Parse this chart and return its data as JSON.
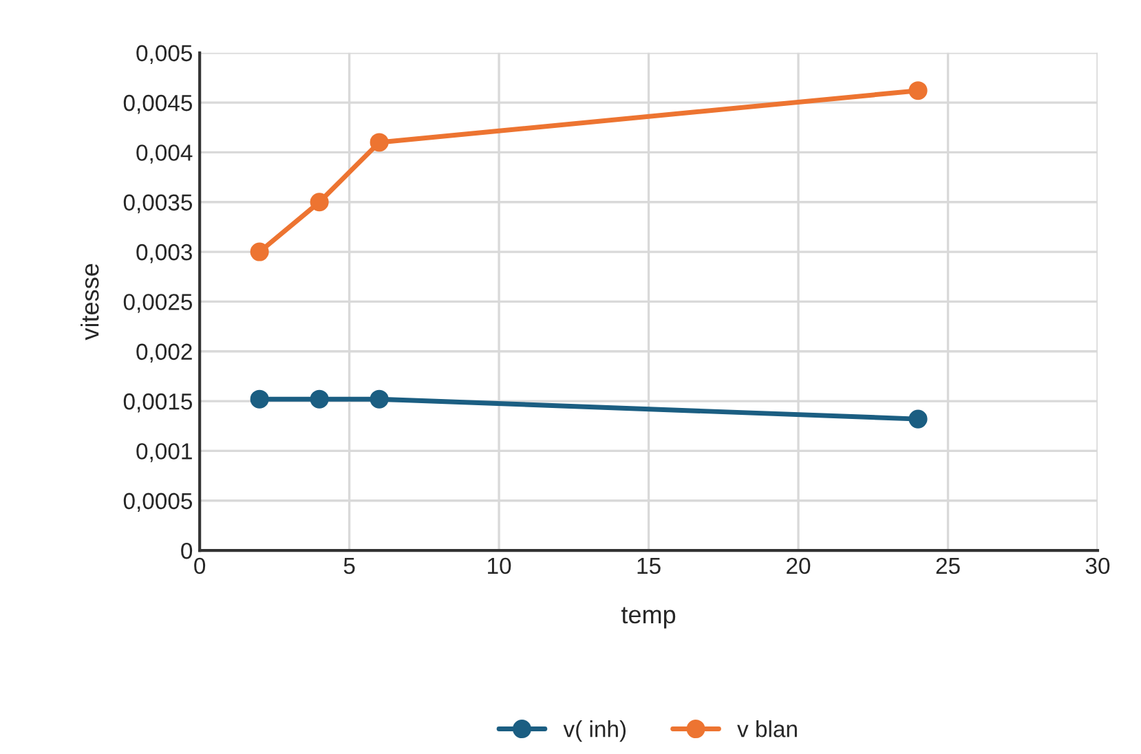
{
  "chart_data": {
    "type": "line",
    "xlabel": "temp",
    "ylabel": "vitesse",
    "x": [
      2,
      4,
      6,
      24
    ],
    "series": [
      {
        "name": "v( inh)",
        "color": "#1b5e82",
        "values": [
          0.00152,
          0.00152,
          0.00152,
          0.00132
        ]
      },
      {
        "name": "v blan",
        "color": "#ed7431",
        "values": [
          0.003,
          0.0035,
          0.0041,
          0.00462
        ]
      }
    ],
    "xlim": [
      0,
      30
    ],
    "xticks": [
      0,
      5,
      10,
      15,
      20,
      25,
      30
    ],
    "ylim": [
      0,
      0.005
    ],
    "yticks": [
      {
        "value": 0,
        "label": "0"
      },
      {
        "value": 0.0005,
        "label": "0,0005"
      },
      {
        "value": 0.001,
        "label": "0,001"
      },
      {
        "value": 0.0015,
        "label": "0,0015"
      },
      {
        "value": 0.002,
        "label": "0,002"
      },
      {
        "value": 0.0025,
        "label": "0,0025"
      },
      {
        "value": 0.003,
        "label": "0,003"
      },
      {
        "value": 0.0035,
        "label": "0,0035"
      },
      {
        "value": 0.004,
        "label": "0,004"
      },
      {
        "value": 0.0045,
        "label": "0,0045"
      },
      {
        "value": 0.005,
        "label": "0,005"
      }
    ],
    "grid": true,
    "legend": "bottom",
    "marker": "circle",
    "line_style": "solid"
  }
}
